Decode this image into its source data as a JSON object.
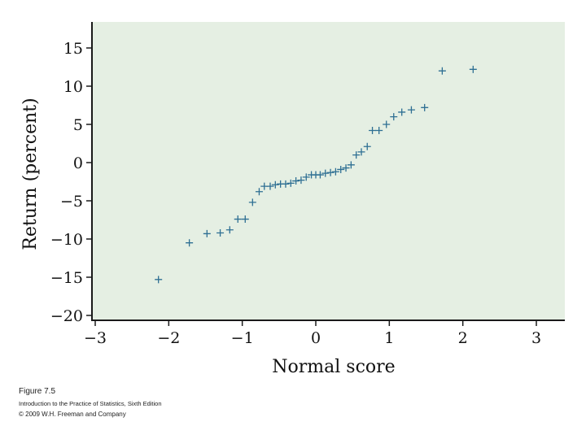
{
  "caption": {
    "figure": "Figure 7.5",
    "source": "Introduction to the Practice of Statistics, Sixth Edition",
    "copyright": "© 2009 W.H. Freeman and Company"
  },
  "chart_data": {
    "type": "scatter",
    "xlabel": "Normal score",
    "ylabel": "Return (percent)",
    "xlim": [
      -3,
      3
    ],
    "ylim": [
      -20,
      15
    ],
    "xticks": [
      -3,
      -2,
      -1,
      0,
      1,
      2,
      3
    ],
    "xtick_labels": [
      "−3",
      "−2",
      "−1",
      "0",
      "1",
      "2",
      "3"
    ],
    "yticks": [
      15,
      10,
      5,
      0,
      -5,
      -10,
      -15,
      -20
    ],
    "ytick_labels": [
      "15",
      "10",
      "5",
      "0",
      "−5",
      "−10",
      "−15",
      "−20"
    ],
    "grid": false,
    "marker": "plus",
    "colors": {
      "plot_background": "#e5efe3",
      "marker": "#2e6f93",
      "axis": "#1a1a1a"
    },
    "points": [
      {
        "x": -2.14,
        "y": -15.3
      },
      {
        "x": -1.72,
        "y": -10.5
      },
      {
        "x": -1.48,
        "y": -9.3
      },
      {
        "x": -1.3,
        "y": -9.2
      },
      {
        "x": -1.17,
        "y": -8.8
      },
      {
        "x": -1.06,
        "y": -7.4
      },
      {
        "x": -0.96,
        "y": -7.4
      },
      {
        "x": -0.86,
        "y": -5.2
      },
      {
        "x": -0.77,
        "y": -3.8
      },
      {
        "x": -0.7,
        "y": -3.1
      },
      {
        "x": -0.62,
        "y": -3.1
      },
      {
        "x": -0.55,
        "y": -2.9
      },
      {
        "x": -0.48,
        "y": -2.8
      },
      {
        "x": -0.41,
        "y": -2.8
      },
      {
        "x": -0.34,
        "y": -2.7
      },
      {
        "x": -0.27,
        "y": -2.4
      },
      {
        "x": -0.2,
        "y": -2.3
      },
      {
        "x": -0.13,
        "y": -1.9
      },
      {
        "x": -0.06,
        "y": -1.6
      },
      {
        "x": 0.0,
        "y": -1.6
      },
      {
        "x": 0.06,
        "y": -1.6
      },
      {
        "x": 0.13,
        "y": -1.4
      },
      {
        "x": 0.2,
        "y": -1.3
      },
      {
        "x": 0.27,
        "y": -1.2
      },
      {
        "x": 0.34,
        "y": -0.9
      },
      {
        "x": 0.41,
        "y": -0.7
      },
      {
        "x": 0.48,
        "y": -0.3
      },
      {
        "x": 0.55,
        "y": 1.0
      },
      {
        "x": 0.62,
        "y": 1.4
      },
      {
        "x": 0.7,
        "y": 2.1
      },
      {
        "x": 0.77,
        "y": 4.2
      },
      {
        "x": 0.86,
        "y": 4.2
      },
      {
        "x": 0.96,
        "y": 5.0
      },
      {
        "x": 1.06,
        "y": 6.0
      },
      {
        "x": 1.17,
        "y": 6.6
      },
      {
        "x": 1.3,
        "y": 6.9
      },
      {
        "x": 1.48,
        "y": 7.2
      },
      {
        "x": 1.72,
        "y": 12.0
      },
      {
        "x": 2.14,
        "y": 12.2
      }
    ]
  }
}
